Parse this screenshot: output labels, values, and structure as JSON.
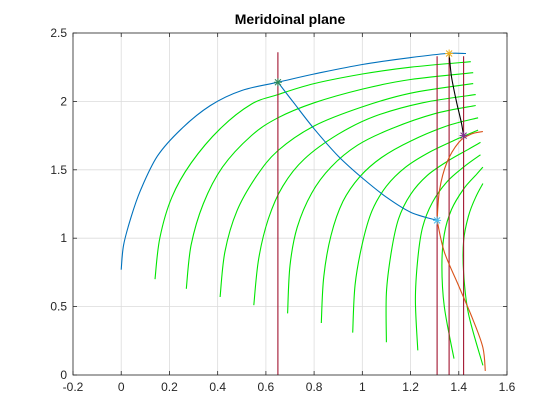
{
  "chart_data": {
    "type": "line",
    "title": "Meridoinal plane",
    "xlabel": "",
    "ylabel": "",
    "xlim": [
      -0.2,
      1.6
    ],
    "ylim": [
      0,
      2.5
    ],
    "x_ticks": [
      -0.2,
      0,
      0.2,
      0.4,
      0.6,
      0.8,
      1,
      1.2,
      1.4,
      1.6
    ],
    "x_tick_labels": [
      "-0.2",
      "0",
      "0.2",
      "0.4",
      "0.6",
      "0.8",
      "1",
      "1.2",
      "1.4",
      "1.6"
    ],
    "y_ticks": [
      0,
      0.5,
      1,
      1.5,
      2,
      2.5
    ],
    "y_tick_labels": [
      "0",
      "0.5",
      "1",
      "1.5",
      "2",
      "2.5"
    ],
    "grid": true,
    "legend": "none",
    "colors": {
      "blue": "#0072BD",
      "green": "#00E600",
      "red": "#D95319",
      "darkred": "#A2142F",
      "black": "#000000",
      "axis": "#262626",
      "grid": "#DCDCDC",
      "star_green": "#2E8B57",
      "star_orange": "#EDB120",
      "star_cyan": "#4DBEEE",
      "star_purple": "#7E2F8E"
    },
    "series": [
      {
        "color": "blue",
        "points": [
          [
            0,
            0.77
          ],
          [
            0.01,
            0.95
          ],
          [
            0.04,
            1.15
          ],
          [
            0.08,
            1.35
          ],
          [
            0.15,
            1.6
          ],
          [
            0.25,
            1.8
          ],
          [
            0.37,
            1.97
          ],
          [
            0.5,
            2.08
          ],
          [
            0.65,
            2.14
          ],
          [
            0.8,
            2.2
          ],
          [
            1.0,
            2.27
          ],
          [
            1.2,
            2.32
          ],
          [
            1.35,
            2.35
          ],
          [
            1.43,
            2.35
          ]
        ]
      },
      {
        "color": "blue",
        "points": [
          [
            0.65,
            2.14
          ],
          [
            0.72,
            1.98
          ],
          [
            0.8,
            1.8
          ],
          [
            0.9,
            1.6
          ],
          [
            1.0,
            1.44
          ],
          [
            1.1,
            1.3
          ],
          [
            1.2,
            1.19
          ],
          [
            1.31,
            1.13
          ]
        ]
      },
      {
        "color": "black",
        "points": [
          [
            1.36,
            2.35
          ],
          [
            1.37,
            2.18
          ],
          [
            1.39,
            2.0
          ],
          [
            1.41,
            1.85
          ],
          [
            1.42,
            1.75
          ]
        ]
      },
      {
        "color": "red",
        "points": [
          [
            1.31,
            1.13
          ],
          [
            1.32,
            1.35
          ],
          [
            1.35,
            1.55
          ],
          [
            1.4,
            1.7
          ],
          [
            1.45,
            1.76
          ],
          [
            1.5,
            1.78
          ]
        ]
      },
      {
        "color": "red",
        "points": [
          [
            1.31,
            1.13
          ],
          [
            1.34,
            0.9
          ],
          [
            1.4,
            0.65
          ],
          [
            1.46,
            0.4
          ],
          [
            1.5,
            0.2
          ],
          [
            1.51,
            0.03
          ]
        ]
      },
      {
        "color": "darkred",
        "points": [
          [
            0.65,
            2.36
          ],
          [
            0.65,
            0
          ]
        ]
      },
      {
        "color": "darkred",
        "points": [
          [
            1.31,
            2.33
          ],
          [
            1.31,
            0
          ]
        ]
      },
      {
        "color": "darkred",
        "points": [
          [
            1.36,
            2.36
          ],
          [
            1.36,
            0
          ]
        ]
      },
      {
        "color": "darkred",
        "points": [
          [
            1.42,
            2.33
          ],
          [
            1.42,
            0
          ]
        ]
      },
      {
        "color": "green",
        "points": [
          [
            0.14,
            0.7
          ],
          [
            0.16,
            1.0
          ],
          [
            0.21,
            1.3
          ],
          [
            0.29,
            1.55
          ],
          [
            0.41,
            1.8
          ],
          [
            0.54,
            1.98
          ],
          [
            0.65,
            2.05
          ],
          [
            0.8,
            2.13
          ],
          [
            1.0,
            2.2
          ],
          [
            1.2,
            2.25
          ],
          [
            1.45,
            2.29
          ]
        ]
      },
      {
        "color": "green",
        "points": [
          [
            0.27,
            0.63
          ],
          [
            0.29,
            0.95
          ],
          [
            0.34,
            1.25
          ],
          [
            0.42,
            1.52
          ],
          [
            0.54,
            1.75
          ],
          [
            0.65,
            1.88
          ],
          [
            0.8,
            1.99
          ],
          [
            1.0,
            2.09
          ],
          [
            1.2,
            2.16
          ],
          [
            1.46,
            2.21
          ]
        ]
      },
      {
        "color": "green",
        "points": [
          [
            0.41,
            0.57
          ],
          [
            0.43,
            0.9
          ],
          [
            0.48,
            1.2
          ],
          [
            0.56,
            1.45
          ],
          [
            0.65,
            1.64
          ],
          [
            0.8,
            1.82
          ],
          [
            1.0,
            1.96
          ],
          [
            1.2,
            2.06
          ],
          [
            1.46,
            2.13
          ]
        ]
      },
      {
        "color": "green",
        "points": [
          [
            0.55,
            0.51
          ],
          [
            0.57,
            0.85
          ],
          [
            0.61,
            1.14
          ],
          [
            0.67,
            1.38
          ],
          [
            0.76,
            1.58
          ],
          [
            0.9,
            1.76
          ],
          [
            1.05,
            1.89
          ],
          [
            1.25,
            1.99
          ],
          [
            1.47,
            2.05
          ]
        ]
      },
      {
        "color": "green",
        "points": [
          [
            0.69,
            0.45
          ],
          [
            0.7,
            0.8
          ],
          [
            0.73,
            1.08
          ],
          [
            0.79,
            1.33
          ],
          [
            0.87,
            1.52
          ],
          [
            0.98,
            1.68
          ],
          [
            1.12,
            1.8
          ],
          [
            1.3,
            1.91
          ],
          [
            1.47,
            1.97
          ]
        ]
      },
      {
        "color": "green",
        "points": [
          [
            0.83,
            0.38
          ],
          [
            0.84,
            0.72
          ],
          [
            0.87,
            1.02
          ],
          [
            0.92,
            1.27
          ],
          [
            0.99,
            1.45
          ],
          [
            1.08,
            1.59
          ],
          [
            1.2,
            1.71
          ],
          [
            1.35,
            1.82
          ],
          [
            1.48,
            1.88
          ]
        ]
      },
      {
        "color": "green",
        "points": [
          [
            0.96,
            0.31
          ],
          [
            0.97,
            0.66
          ],
          [
            1.0,
            0.96
          ],
          [
            1.04,
            1.2
          ],
          [
            1.1,
            1.38
          ],
          [
            1.18,
            1.52
          ],
          [
            1.28,
            1.63
          ],
          [
            1.4,
            1.73
          ],
          [
            1.48,
            1.79
          ]
        ]
      },
      {
        "color": "green",
        "points": [
          [
            1.1,
            0.24
          ],
          [
            1.1,
            0.6
          ],
          [
            1.12,
            0.9
          ],
          [
            1.15,
            1.14
          ],
          [
            1.2,
            1.32
          ],
          [
            1.27,
            1.46
          ],
          [
            1.36,
            1.57
          ],
          [
            1.44,
            1.65
          ],
          [
            1.49,
            1.7
          ]
        ]
      },
      {
        "color": "green",
        "points": [
          [
            1.23,
            0.18
          ],
          [
            1.22,
            0.55
          ],
          [
            1.23,
            0.85
          ],
          [
            1.25,
            1.08
          ],
          [
            1.29,
            1.26
          ],
          [
            1.35,
            1.41
          ],
          [
            1.42,
            1.52
          ],
          [
            1.49,
            1.61
          ]
        ]
      },
      {
        "color": "green",
        "points": [
          [
            1.38,
            0.12
          ],
          [
            1.34,
            0.5
          ],
          [
            1.33,
            0.8
          ],
          [
            1.34,
            1.03
          ],
          [
            1.37,
            1.21
          ],
          [
            1.42,
            1.36
          ],
          [
            1.47,
            1.46
          ],
          [
            1.5,
            1.52
          ]
        ]
      },
      {
        "color": "green",
        "points": [
          [
            1.5,
            0.07
          ],
          [
            1.44,
            0.45
          ],
          [
            1.42,
            0.75
          ],
          [
            1.42,
            0.98
          ],
          [
            1.44,
            1.16
          ],
          [
            1.47,
            1.3
          ],
          [
            1.5,
            1.4
          ]
        ]
      }
    ],
    "markers": [
      {
        "x": 0.65,
        "y": 2.14,
        "color": "star_green"
      },
      {
        "x": 1.36,
        "y": 2.35,
        "color": "star_orange"
      },
      {
        "x": 1.31,
        "y": 1.13,
        "color": "star_cyan"
      },
      {
        "x": 1.42,
        "y": 1.75,
        "color": "star_purple"
      }
    ]
  }
}
